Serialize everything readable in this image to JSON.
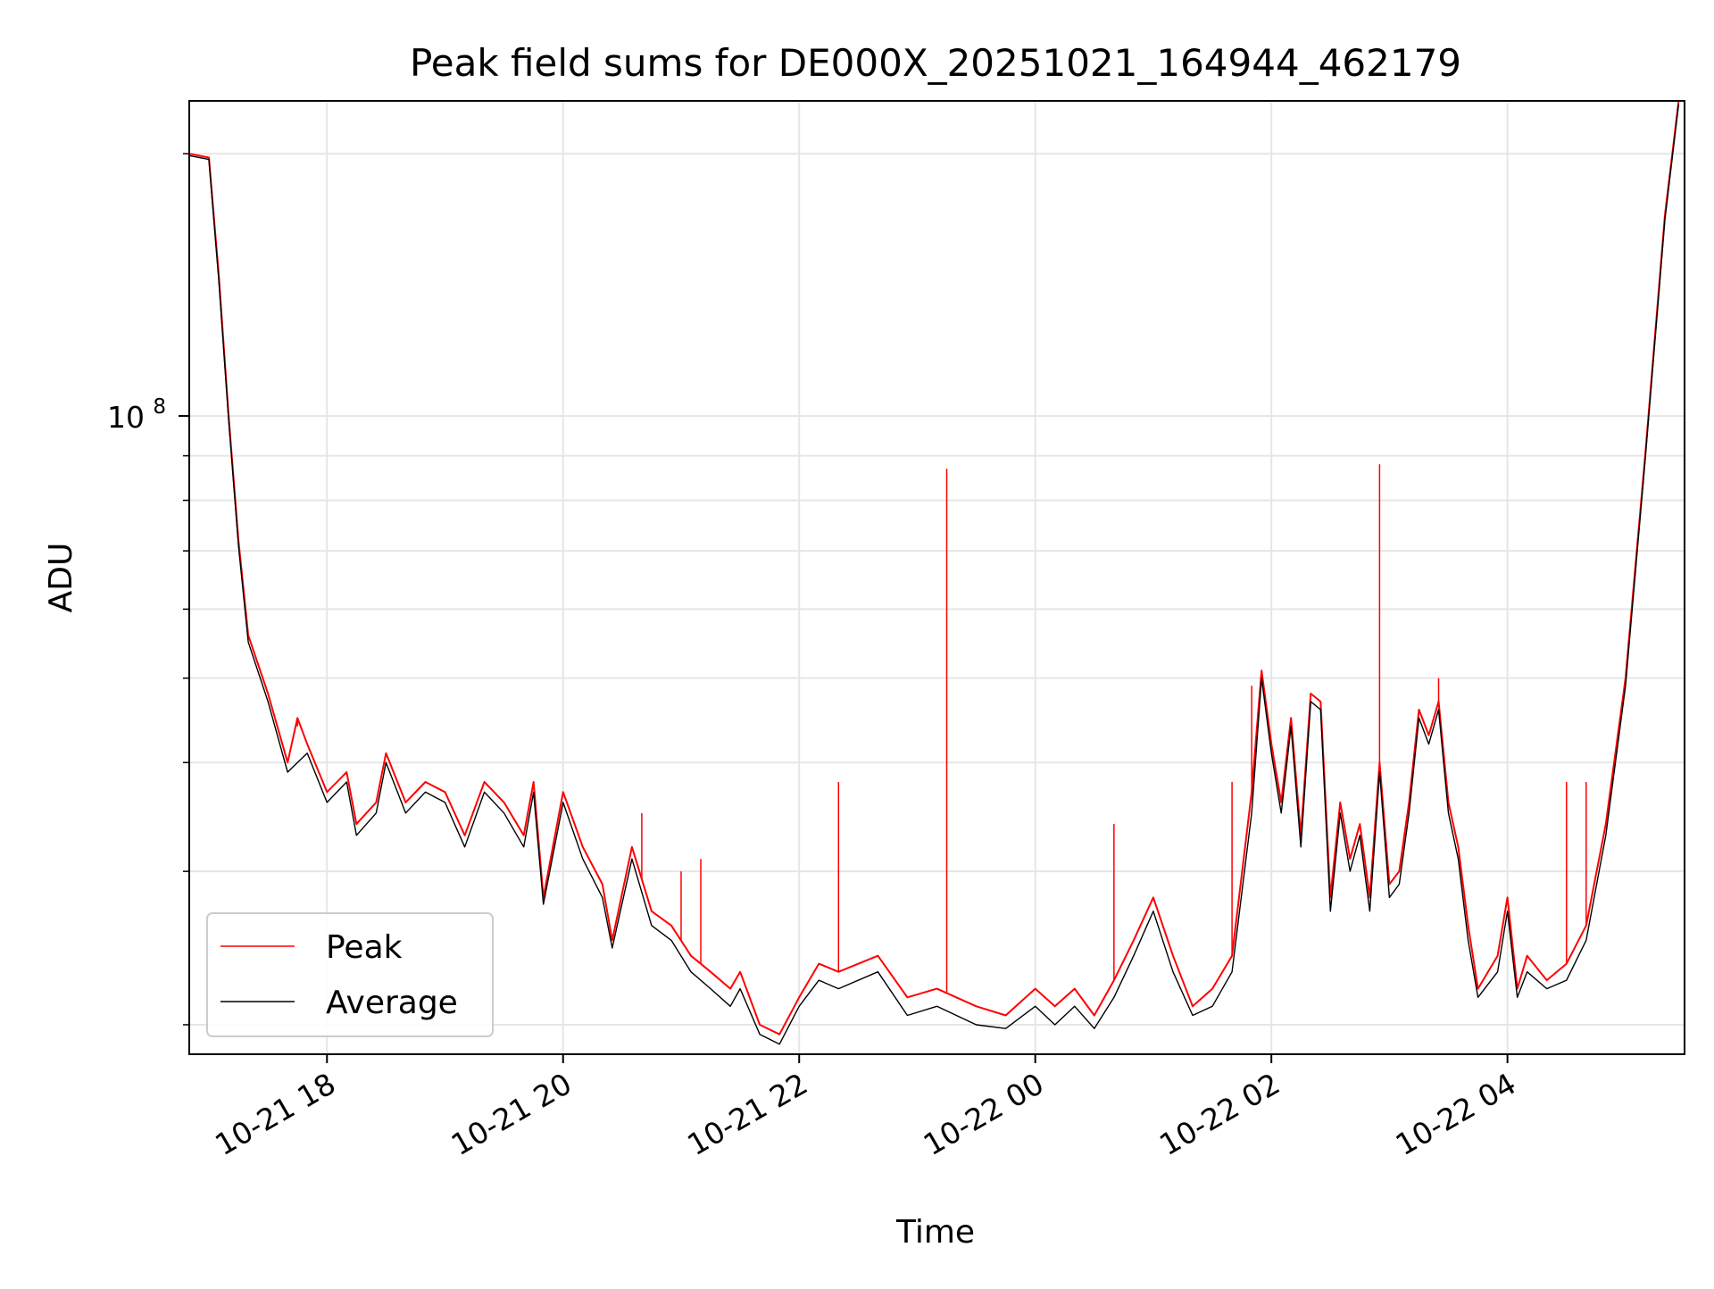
{
  "chart_data": {
    "type": "line",
    "title": "Peak field sums for DE000X_20251021_164944_462179",
    "xlabel": "Time",
    "ylabel": "ADU",
    "yscale": "log",
    "ylim": [
      18500000,
      230000000
    ],
    "xlim": [
      "2025-10-21 16:50",
      "2025-10-22 05:30"
    ],
    "grid": true,
    "legend_position": "lower-left",
    "x_ticks": [
      {
        "t": "2025-10-21 18:00",
        "label": "10-21 18"
      },
      {
        "t": "2025-10-21 20:00",
        "label": "10-21 20"
      },
      {
        "t": "2025-10-21 22:00",
        "label": "10-21 22"
      },
      {
        "t": "2025-10-22 00:00",
        "label": "10-22 00"
      },
      {
        "t": "2025-10-22 02:00",
        "label": "10-22 02"
      },
      {
        "t": "2025-10-22 04:00",
        "label": "10-22 04"
      }
    ],
    "y_major_ticks": [
      {
        "value": 100000000,
        "label_base": "10",
        "label_exp": "8"
      }
    ],
    "y_minor_ticks": [
      20000000,
      30000000,
      40000000,
      50000000,
      60000000,
      70000000,
      80000000,
      90000000,
      200000000
    ],
    "series": [
      {
        "name": "Peak",
        "color": "#ff0000",
        "points": [
          [
            "2025-10-21 16:50",
            200000000
          ],
          [
            "2025-10-21 17:00",
            198000000
          ],
          [
            "2025-10-21 17:05",
            145000000
          ],
          [
            "2025-10-21 17:10",
            100000000
          ],
          [
            "2025-10-21 17:15",
            72000000
          ],
          [
            "2025-10-21 17:20",
            56000000
          ],
          [
            "2025-10-21 17:30",
            48000000
          ],
          [
            "2025-10-21 17:40",
            40000000
          ],
          [
            "2025-10-21 17:45",
            45000000
          ],
          [
            "2025-10-21 17:50",
            42000000
          ],
          [
            "2025-10-21 18:00",
            37000000
          ],
          [
            "2025-10-21 18:10",
            39000000
          ],
          [
            "2025-10-21 18:15",
            34000000
          ],
          [
            "2025-10-21 18:25",
            36000000
          ],
          [
            "2025-10-21 18:30",
            41000000
          ],
          [
            "2025-10-21 18:40",
            36000000
          ],
          [
            "2025-10-21 18:50",
            38000000
          ],
          [
            "2025-10-21 19:00",
            37000000
          ],
          [
            "2025-10-21 19:10",
            33000000
          ],
          [
            "2025-10-21 19:20",
            38000000
          ],
          [
            "2025-10-21 19:30",
            36000000
          ],
          [
            "2025-10-21 19:40",
            33000000
          ],
          [
            "2025-10-21 19:45",
            38000000
          ],
          [
            "2025-10-21 19:50",
            28000000
          ],
          [
            "2025-10-21 20:00",
            37000000
          ],
          [
            "2025-10-21 20:10",
            32000000
          ],
          [
            "2025-10-21 20:20",
            29000000
          ],
          [
            "2025-10-21 20:25",
            25000000
          ],
          [
            "2025-10-21 20:35",
            32000000
          ],
          [
            "2025-10-21 20:45",
            27000000
          ],
          [
            "2025-10-21 20:55",
            26000000
          ],
          [
            "2025-10-21 21:05",
            24000000
          ],
          [
            "2025-10-21 21:15",
            23000000
          ],
          [
            "2025-10-21 21:25",
            22000000
          ],
          [
            "2025-10-21 21:30",
            23000000
          ],
          [
            "2025-10-21 21:40",
            20000000
          ],
          [
            "2025-10-21 21:50",
            19500000
          ],
          [
            "2025-10-21 22:00",
            21500000
          ],
          [
            "2025-10-21 22:10",
            23500000
          ],
          [
            "2025-10-21 22:20",
            23000000
          ],
          [
            "2025-10-21 22:40",
            24000000
          ],
          [
            "2025-10-21 22:55",
            21500000
          ],
          [
            "2025-10-21 23:10",
            22000000
          ],
          [
            "2025-10-21 23:30",
            21000000
          ],
          [
            "2025-10-21 23:45",
            20500000
          ],
          [
            "2025-10-22 00:00",
            22000000
          ],
          [
            "2025-10-22 00:10",
            21000000
          ],
          [
            "2025-10-22 00:20",
            22000000
          ],
          [
            "2025-10-22 00:30",
            20500000
          ],
          [
            "2025-10-22 00:40",
            22500000
          ],
          [
            "2025-10-22 00:50",
            25000000
          ],
          [
            "2025-10-22 01:00",
            28000000
          ],
          [
            "2025-10-22 01:10",
            24000000
          ],
          [
            "2025-10-22 01:20",
            21000000
          ],
          [
            "2025-10-22 01:30",
            22000000
          ],
          [
            "2025-10-22 01:40",
            24000000
          ],
          [
            "2025-10-22 01:50",
            37000000
          ],
          [
            "2025-10-22 01:55",
            51000000
          ],
          [
            "2025-10-22 02:00",
            42000000
          ],
          [
            "2025-10-22 02:05",
            36000000
          ],
          [
            "2025-10-22 02:10",
            45000000
          ],
          [
            "2025-10-22 02:15",
            33000000
          ],
          [
            "2025-10-22 02:20",
            48000000
          ],
          [
            "2025-10-22 02:25",
            47000000
          ],
          [
            "2025-10-22 02:30",
            28000000
          ],
          [
            "2025-10-22 02:35",
            36000000
          ],
          [
            "2025-10-22 02:40",
            31000000
          ],
          [
            "2025-10-22 02:45",
            34000000
          ],
          [
            "2025-10-22 02:50",
            28000000
          ],
          [
            "2025-10-22 02:55",
            40000000
          ],
          [
            "2025-10-22 03:00",
            29000000
          ],
          [
            "2025-10-22 03:05",
            30000000
          ],
          [
            "2025-10-22 03:10",
            36000000
          ],
          [
            "2025-10-22 03:15",
            46000000
          ],
          [
            "2025-10-22 03:20",
            43000000
          ],
          [
            "2025-10-22 03:25",
            47000000
          ],
          [
            "2025-10-22 03:30",
            36000000
          ],
          [
            "2025-10-22 03:35",
            32000000
          ],
          [
            "2025-10-22 03:40",
            26000000
          ],
          [
            "2025-10-22 03:45",
            22000000
          ],
          [
            "2025-10-22 03:55",
            24000000
          ],
          [
            "2025-10-22 04:00",
            28000000
          ],
          [
            "2025-10-22 04:05",
            22000000
          ],
          [
            "2025-10-22 04:10",
            24000000
          ],
          [
            "2025-10-22 04:20",
            22500000
          ],
          [
            "2025-10-22 04:30",
            23500000
          ],
          [
            "2025-10-22 04:40",
            26000000
          ],
          [
            "2025-10-22 04:50",
            34000000
          ],
          [
            "2025-10-22 05:00",
            50000000
          ],
          [
            "2025-10-22 05:10",
            90000000
          ],
          [
            "2025-10-22 05:20",
            170000000
          ],
          [
            "2025-10-22 05:27",
            230000000
          ]
        ],
        "spikes": [
          [
            "2025-10-21 17:45",
            44000000
          ],
          [
            "2025-10-21 20:40",
            35000000
          ],
          [
            "2025-10-21 21:00",
            30000000
          ],
          [
            "2025-10-21 21:10",
            31000000
          ],
          [
            "2025-10-21 22:20",
            38000000
          ],
          [
            "2025-10-21 23:15",
            87000000
          ],
          [
            "2025-10-22 00:40",
            34000000
          ],
          [
            "2025-10-22 01:40",
            38000000
          ],
          [
            "2025-10-22 01:50",
            49000000
          ],
          [
            "2025-10-22 02:55",
            88000000
          ],
          [
            "2025-10-22 03:25",
            50000000
          ],
          [
            "2025-10-22 04:30",
            38000000
          ],
          [
            "2025-10-22 04:40",
            38000000
          ]
        ]
      },
      {
        "name": "Average",
        "color": "#000000",
        "points": [
          [
            "2025-10-21 16:50",
            199000000
          ],
          [
            "2025-10-21 17:00",
            197000000
          ],
          [
            "2025-10-21 17:05",
            143000000
          ],
          [
            "2025-10-21 17:10",
            99000000
          ],
          [
            "2025-10-21 17:15",
            71000000
          ],
          [
            "2025-10-21 17:20",
            55000000
          ],
          [
            "2025-10-21 17:30",
            47000000
          ],
          [
            "2025-10-21 17:40",
            39000000
          ],
          [
            "2025-10-21 17:45",
            40000000
          ],
          [
            "2025-10-21 17:50",
            41000000
          ],
          [
            "2025-10-21 18:00",
            36000000
          ],
          [
            "2025-10-21 18:10",
            38000000
          ],
          [
            "2025-10-21 18:15",
            33000000
          ],
          [
            "2025-10-21 18:25",
            35000000
          ],
          [
            "2025-10-21 18:30",
            40000000
          ],
          [
            "2025-10-21 18:40",
            35000000
          ],
          [
            "2025-10-21 18:50",
            37000000
          ],
          [
            "2025-10-21 19:00",
            36000000
          ],
          [
            "2025-10-21 19:10",
            32000000
          ],
          [
            "2025-10-21 19:20",
            37000000
          ],
          [
            "2025-10-21 19:30",
            35000000
          ],
          [
            "2025-10-21 19:40",
            32000000
          ],
          [
            "2025-10-21 19:45",
            37000000
          ],
          [
            "2025-10-21 19:50",
            27500000
          ],
          [
            "2025-10-21 20:00",
            36000000
          ],
          [
            "2025-10-21 20:10",
            31000000
          ],
          [
            "2025-10-21 20:20",
            28000000
          ],
          [
            "2025-10-21 20:25",
            24500000
          ],
          [
            "2025-10-21 20:35",
            31000000
          ],
          [
            "2025-10-21 20:45",
            26000000
          ],
          [
            "2025-10-21 20:55",
            25000000
          ],
          [
            "2025-10-21 21:05",
            23000000
          ],
          [
            "2025-10-21 21:15",
            22000000
          ],
          [
            "2025-10-21 21:25",
            21000000
          ],
          [
            "2025-10-21 21:30",
            22000000
          ],
          [
            "2025-10-21 21:40",
            19500000
          ],
          [
            "2025-10-21 21:50",
            19000000
          ],
          [
            "2025-10-21 22:00",
            21000000
          ],
          [
            "2025-10-21 22:10",
            22500000
          ],
          [
            "2025-10-21 22:20",
            22000000
          ],
          [
            "2025-10-21 22:40",
            23000000
          ],
          [
            "2025-10-21 22:55",
            20500000
          ],
          [
            "2025-10-21 23:10",
            21000000
          ],
          [
            "2025-10-21 23:30",
            20000000
          ],
          [
            "2025-10-21 23:45",
            19800000
          ],
          [
            "2025-10-22 00:00",
            21000000
          ],
          [
            "2025-10-22 00:10",
            20000000
          ],
          [
            "2025-10-22 00:20",
            21000000
          ],
          [
            "2025-10-22 00:30",
            19800000
          ],
          [
            "2025-10-22 00:40",
            21500000
          ],
          [
            "2025-10-22 00:50",
            24000000
          ],
          [
            "2025-10-22 01:00",
            27000000
          ],
          [
            "2025-10-22 01:10",
            23000000
          ],
          [
            "2025-10-22 01:20",
            20500000
          ],
          [
            "2025-10-22 01:30",
            21000000
          ],
          [
            "2025-10-22 01:40",
            23000000
          ],
          [
            "2025-10-22 01:50",
            35000000
          ],
          [
            "2025-10-22 01:55",
            50000000
          ],
          [
            "2025-10-22 02:00",
            41000000
          ],
          [
            "2025-10-22 02:05",
            35000000
          ],
          [
            "2025-10-22 02:10",
            44000000
          ],
          [
            "2025-10-22 02:15",
            32000000
          ],
          [
            "2025-10-22 02:20",
            47000000
          ],
          [
            "2025-10-22 02:25",
            46000000
          ],
          [
            "2025-10-22 02:30",
            27000000
          ],
          [
            "2025-10-22 02:35",
            35000000
          ],
          [
            "2025-10-22 02:40",
            30000000
          ],
          [
            "2025-10-22 02:45",
            33000000
          ],
          [
            "2025-10-22 02:50",
            27000000
          ],
          [
            "2025-10-22 02:55",
            39000000
          ],
          [
            "2025-10-22 03:00",
            28000000
          ],
          [
            "2025-10-22 03:05",
            29000000
          ],
          [
            "2025-10-22 03:10",
            35000000
          ],
          [
            "2025-10-22 03:15",
            45000000
          ],
          [
            "2025-10-22 03:20",
            42000000
          ],
          [
            "2025-10-22 03:25",
            46000000
          ],
          [
            "2025-10-22 03:30",
            35000000
          ],
          [
            "2025-10-22 03:35",
            31000000
          ],
          [
            "2025-10-22 03:40",
            25000000
          ],
          [
            "2025-10-22 03:45",
            21500000
          ],
          [
            "2025-10-22 03:55",
            23000000
          ],
          [
            "2025-10-22 04:00",
            27000000
          ],
          [
            "2025-10-22 04:05",
            21500000
          ],
          [
            "2025-10-22 04:10",
            23000000
          ],
          [
            "2025-10-22 04:20",
            22000000
          ],
          [
            "2025-10-22 04:30",
            22500000
          ],
          [
            "2025-10-22 04:40",
            25000000
          ],
          [
            "2025-10-22 04:50",
            33000000
          ],
          [
            "2025-10-22 05:00",
            49000000
          ],
          [
            "2025-10-22 05:10",
            89000000
          ],
          [
            "2025-10-22 05:20",
            168000000
          ],
          [
            "2025-10-22 05:27",
            228000000
          ]
        ]
      }
    ]
  }
}
